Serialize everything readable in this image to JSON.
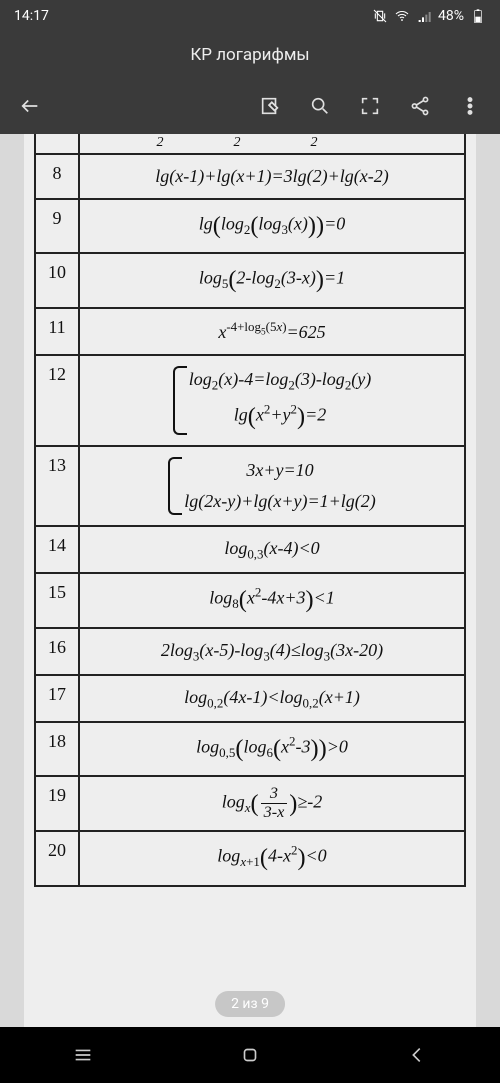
{
  "statusbar": {
    "time": "14:17",
    "battery": "48%"
  },
  "header": {
    "title": "КР логарифмы"
  },
  "pager": {
    "label": "2 из 9"
  },
  "rows": [
    {
      "n": "8",
      "eq": "lg(<i>x</i>-1)+lg(<i>x</i>+1)=3lg(2)+lg(<i>x</i>-2)"
    },
    {
      "n": "9",
      "eq": "lg<span class='bigparen'>(</span>log<sub>2</sub><span class='bigparen'>(</span>log<sub>3</sub>(<i>x</i>)<span class='bigparen'>)</span><span class='bigparen'>)</span>=0"
    },
    {
      "n": "10",
      "eq": "log<sub>5</sub><span class='bigparen'>(</span>2-log<sub>2</sub>(3-<i>x</i>)<span class='bigparen'>)</span>=1"
    },
    {
      "n": "11",
      "eq": "<i>x</i><sup>-4+log<sub>5</sub>(5<i>x</i>)</sup>=625"
    },
    {
      "n": "12",
      "eq": "<span class='sys'><span class='line'>log<sub>2</sub>(<i>x</i>)-4=log<sub>2</sub>(3)-log<sub>2</sub>(<i>y</i>)</span><span class='line'>lg<span class='bigparen'>(</span><i>x</i><sup>2</sup>+<i>y</i><sup>2</sup><span class='bigparen'>)</span>=2</span></span>"
    },
    {
      "n": "13",
      "eq": "<span class='sys'><span class='line'>3<i>x</i>+<i>y</i>=10</span><span class='line'>lg(2<i>x</i>-<i>y</i>)+lg(<i>x</i>+<i>y</i>)=1+lg(2)</span></span>"
    },
    {
      "n": "14",
      "eq": "log<sub>0,3</sub>(<i>x</i>-4)&lt;0"
    },
    {
      "n": "15",
      "eq": "log<sub>8</sub><span class='bigparen'>(</span><i>x</i><sup>2</sup>-4<i>x</i>+3<span class='bigparen'>)</span>&lt;1"
    },
    {
      "n": "16",
      "eq": "2log<sub>3</sub>(<i>x</i>-5)-log<sub>3</sub>(4)&le;log<sub>3</sub>(3<i>x</i>-20)"
    },
    {
      "n": "17",
      "eq": "log<sub>0,2</sub>(4<i>x</i>-1)&lt;log<sub>0,2</sub>(<i>x</i>+1)"
    },
    {
      "n": "18",
      "eq": "log<sub>0,5</sub><span class='bigparen'>(</span>log<sub>6</sub><span class='bigparen'>(</span><i>x</i><sup>2</sup>-3<span class='bigparen'>)</span><span class='bigparen'>)</span>&gt;0"
    },
    {
      "n": "19",
      "eq": "log<sub><i>x</i></sub><span class='bigparen'>(</span><span class='frac'><span class='n'>3</span><span class='d'>3-<i>x</i></span></span><span class='bigparen'>)</span>&ge;-2"
    },
    {
      "n": "20",
      "eq": "log<sub><i>x</i>+1</sub><span class='bigparen'>(</span>4-<i>x</i><sup>2</sup><span class='bigparen'>)</span>&lt;0"
    }
  ]
}
